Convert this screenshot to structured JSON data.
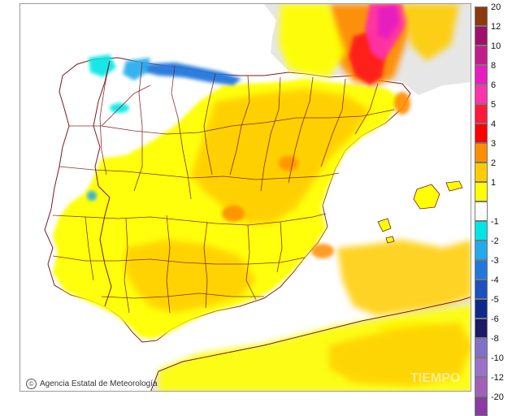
{
  "map": {
    "title": "",
    "credit": "Agencia Estatal de Meteorología",
    "watermark": "TIEMPO",
    "sea_color": "#ffffff",
    "outside_color": "#e6e6e6",
    "border_color": "#7a1a1a"
  },
  "legend": {
    "positive": [
      {
        "label": "20",
        "color": "#8b3a0e"
      },
      {
        "label": "12",
        "color": "#a0106a"
      },
      {
        "label": "10",
        "color": "#c41c8c"
      },
      {
        "label": "8",
        "color": "#e61dbf"
      },
      {
        "label": "6",
        "color": "#ff33aa"
      },
      {
        "label": "5",
        "color": "#ff1a3c"
      },
      {
        "label": "4",
        "color": "#ff0000"
      },
      {
        "label": "3",
        "color": "#ff8c00"
      },
      {
        "label": "2",
        "color": "#ffcc00"
      },
      {
        "label": "1",
        "color": "#ffff00"
      }
    ],
    "zero_color": "#ffffff",
    "negative": [
      {
        "label": "-1",
        "color": "#00e5e5"
      },
      {
        "label": "-2",
        "color": "#22aaee"
      },
      {
        "label": "-3",
        "color": "#2277dd"
      },
      {
        "label": "-4",
        "color": "#1c4fbf"
      },
      {
        "label": "-5",
        "color": "#0c2a8a"
      },
      {
        "label": "-6",
        "color": "#1a1a66"
      },
      {
        "label": "-8",
        "color": "#8070c8"
      },
      {
        "label": "-10",
        "color": "#9a70c8"
      },
      {
        "label": "-12",
        "color": "#a060b8"
      },
      {
        "label": "-20",
        "color": "#8a3aa0"
      }
    ]
  }
}
